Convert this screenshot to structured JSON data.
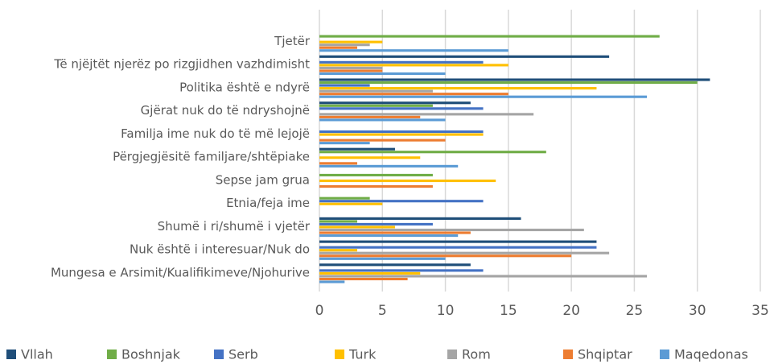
{
  "chart_data": {
    "type": "hbar",
    "categories": [
      "Tjetër",
      "Të njëjtët njerëz po rizgjidhen vazhdimisht",
      "Politika është e ndyrë",
      "Gjërat nuk do të ndryshojnë",
      "Familja ime nuk do të më lejojë",
      "Përgjegjësitë familjare/shtëpiake",
      "Sepse jam grua",
      "Etnia/feja ime",
      "Shumë i ri/shumë i vjetër",
      "Nuk është i interesuar/Nuk do",
      "Mungesa e Arsimit/Kualifikimeve/Njohurive"
    ],
    "series": [
      {
        "name": "Vllah",
        "color": "#1f4e79",
        "values": [
          0,
          23,
          31,
          12,
          0,
          6,
          0,
          0,
          16,
          22,
          12
        ]
      },
      {
        "name": "Boshnjak",
        "color": "#70ad47",
        "values": [
          27,
          0,
          30,
          9,
          0,
          18,
          9,
          4,
          3,
          0,
          0
        ]
      },
      {
        "name": "Serb",
        "color": "#4472c4",
        "values": [
          0,
          13,
          4,
          13,
          13,
          0,
          0,
          13,
          9,
          22,
          13
        ]
      },
      {
        "name": "Turk",
        "color": "#ffc000",
        "values": [
          5,
          15,
          22,
          0,
          13,
          8,
          14,
          5,
          6,
          3,
          8
        ]
      },
      {
        "name": "Rom",
        "color": "#a5a5a5",
        "values": [
          4,
          5,
          9,
          17,
          0,
          0,
          0,
          0,
          21,
          23,
          26
        ]
      },
      {
        "name": "Shqiptar",
        "color": "#ed7d31",
        "values": [
          3,
          5,
          15,
          8,
          10,
          3,
          9,
          0,
          12,
          20,
          7
        ]
      },
      {
        "name": "Maqedonas",
        "color": "#5b9bd5",
        "values": [
          15,
          10,
          26,
          10,
          4,
          11,
          0,
          0,
          11,
          10,
          2
        ]
      }
    ],
    "xlim": [
      0,
      35
    ],
    "xticks": [
      0,
      5,
      10,
      15,
      20,
      25,
      30,
      35
    ],
    "grid": true,
    "legend": "bottom"
  }
}
